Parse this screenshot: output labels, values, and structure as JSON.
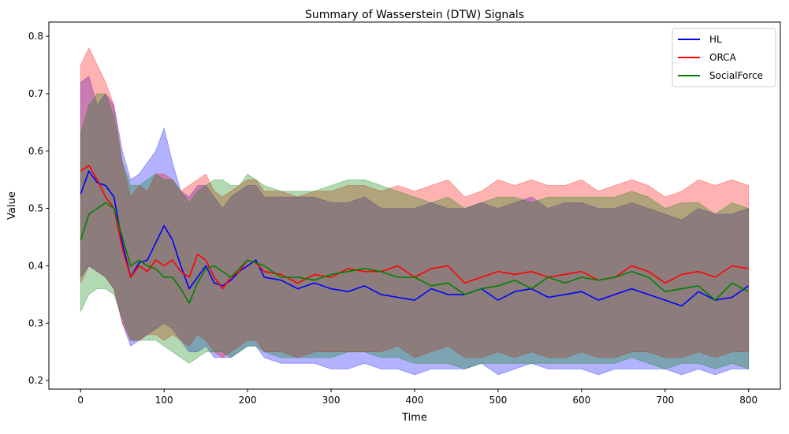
{
  "chart_data": {
    "type": "line",
    "title": "Summary of Wasserstein (DTW) Signals",
    "xlabel": "Time",
    "ylabel": "Value",
    "xlim": [
      -38,
      838
    ],
    "ylim": [
      0.185,
      0.825
    ],
    "xticks": [
      0,
      100,
      200,
      300,
      400,
      500,
      600,
      700,
      800
    ],
    "yticks": [
      0.2,
      0.3,
      0.4,
      0.5,
      0.6,
      0.7,
      0.8
    ],
    "ytick_labels": [
      "0.2",
      "0.3",
      "0.4",
      "0.5",
      "0.6",
      "0.7",
      "0.8"
    ],
    "grid": false,
    "legend_position": "top-right",
    "band": "shaded band around each mean (upper/lower envelope)",
    "series": [
      {
        "name": "HL",
        "color": "#0000ff",
        "x": [
          0,
          10,
          20,
          30,
          40,
          50,
          60,
          70,
          80,
          90,
          100,
          110,
          120,
          130,
          140,
          150,
          160,
          170,
          180,
          190,
          200,
          210,
          220,
          240,
          260,
          280,
          300,
          320,
          340,
          360,
          380,
          400,
          420,
          440,
          460,
          480,
          500,
          520,
          540,
          560,
          580,
          600,
          620,
          640,
          660,
          680,
          700,
          720,
          740,
          760,
          780,
          800
        ],
        "mean": [
          0.525,
          0.565,
          0.545,
          0.54,
          0.52,
          0.44,
          0.38,
          0.405,
          0.41,
          0.44,
          0.47,
          0.445,
          0.4,
          0.36,
          0.38,
          0.4,
          0.37,
          0.365,
          0.375,
          0.39,
          0.4,
          0.41,
          0.38,
          0.375,
          0.36,
          0.37,
          0.36,
          0.355,
          0.365,
          0.35,
          0.345,
          0.34,
          0.36,
          0.35,
          0.35,
          0.36,
          0.34,
          0.355,
          0.36,
          0.345,
          0.35,
          0.355,
          0.34,
          0.35,
          0.36,
          0.35,
          0.34,
          0.33,
          0.355,
          0.34,
          0.345,
          0.365
        ],
        "upper": [
          0.72,
          0.73,
          0.68,
          0.7,
          0.68,
          0.6,
          0.55,
          0.56,
          0.58,
          0.6,
          0.64,
          0.58,
          0.53,
          0.52,
          0.54,
          0.54,
          0.52,
          0.5,
          0.52,
          0.53,
          0.54,
          0.54,
          0.52,
          0.52,
          0.52,
          0.52,
          0.51,
          0.51,
          0.52,
          0.5,
          0.5,
          0.5,
          0.51,
          0.5,
          0.5,
          0.51,
          0.5,
          0.51,
          0.52,
          0.5,
          0.51,
          0.51,
          0.5,
          0.5,
          0.51,
          0.5,
          0.49,
          0.48,
          0.5,
          0.49,
          0.49,
          0.5
        ],
        "lower": [
          0.38,
          0.4,
          0.39,
          0.38,
          0.36,
          0.3,
          0.26,
          0.27,
          0.28,
          0.29,
          0.3,
          0.29,
          0.27,
          0.25,
          0.25,
          0.26,
          0.24,
          0.24,
          0.24,
          0.25,
          0.26,
          0.26,
          0.24,
          0.23,
          0.23,
          0.23,
          0.22,
          0.22,
          0.23,
          0.22,
          0.22,
          0.21,
          0.22,
          0.22,
          0.22,
          0.23,
          0.21,
          0.22,
          0.23,
          0.22,
          0.22,
          0.22,
          0.21,
          0.22,
          0.22,
          0.22,
          0.22,
          0.21,
          0.22,
          0.21,
          0.22,
          0.22
        ]
      },
      {
        "name": "ORCA",
        "color": "#ff0000",
        "x": [
          0,
          10,
          20,
          30,
          40,
          50,
          60,
          70,
          80,
          90,
          100,
          110,
          120,
          130,
          140,
          150,
          160,
          170,
          180,
          190,
          200,
          210,
          220,
          240,
          260,
          280,
          300,
          320,
          340,
          360,
          380,
          400,
          420,
          440,
          460,
          480,
          500,
          520,
          540,
          560,
          580,
          600,
          620,
          640,
          660,
          680,
          700,
          720,
          740,
          760,
          780,
          800
        ],
        "mean": [
          0.565,
          0.575,
          0.55,
          0.52,
          0.5,
          0.43,
          0.38,
          0.4,
          0.39,
          0.41,
          0.4,
          0.41,
          0.39,
          0.38,
          0.42,
          0.41,
          0.38,
          0.36,
          0.38,
          0.39,
          0.41,
          0.405,
          0.39,
          0.385,
          0.37,
          0.385,
          0.38,
          0.395,
          0.39,
          0.39,
          0.4,
          0.38,
          0.395,
          0.4,
          0.37,
          0.38,
          0.39,
          0.385,
          0.39,
          0.38,
          0.385,
          0.39,
          0.375,
          0.38,
          0.4,
          0.39,
          0.37,
          0.385,
          0.39,
          0.38,
          0.4,
          0.395
        ],
        "upper": [
          0.75,
          0.78,
          0.75,
          0.72,
          0.68,
          0.58,
          0.52,
          0.54,
          0.53,
          0.56,
          0.56,
          0.55,
          0.53,
          0.54,
          0.55,
          0.56,
          0.53,
          0.52,
          0.53,
          0.54,
          0.55,
          0.55,
          0.53,
          0.53,
          0.52,
          0.53,
          0.53,
          0.54,
          0.54,
          0.53,
          0.54,
          0.53,
          0.54,
          0.55,
          0.52,
          0.53,
          0.55,
          0.54,
          0.55,
          0.54,
          0.54,
          0.55,
          0.53,
          0.54,
          0.55,
          0.54,
          0.52,
          0.53,
          0.55,
          0.54,
          0.55,
          0.54
        ],
        "lower": [
          0.37,
          0.4,
          0.39,
          0.38,
          0.36,
          0.3,
          0.27,
          0.27,
          0.28,
          0.28,
          0.27,
          0.28,
          0.27,
          0.26,
          0.28,
          0.27,
          0.25,
          0.24,
          0.25,
          0.26,
          0.27,
          0.27,
          0.25,
          0.25,
          0.24,
          0.25,
          0.25,
          0.25,
          0.25,
          0.25,
          0.26,
          0.24,
          0.25,
          0.26,
          0.24,
          0.24,
          0.25,
          0.24,
          0.25,
          0.24,
          0.24,
          0.25,
          0.24,
          0.24,
          0.25,
          0.25,
          0.24,
          0.24,
          0.25,
          0.24,
          0.25,
          0.25
        ]
      },
      {
        "name": "SocialForce",
        "color": "#008000",
        "x": [
          0,
          10,
          20,
          30,
          40,
          50,
          60,
          70,
          80,
          90,
          100,
          110,
          120,
          130,
          140,
          150,
          160,
          170,
          180,
          190,
          200,
          210,
          220,
          240,
          260,
          280,
          300,
          320,
          340,
          360,
          380,
          400,
          420,
          440,
          460,
          480,
          500,
          520,
          540,
          560,
          580,
          600,
          620,
          640,
          660,
          680,
          700,
          720,
          740,
          760,
          780,
          800
        ],
        "mean": [
          0.445,
          0.49,
          0.5,
          0.51,
          0.5,
          0.45,
          0.4,
          0.41,
          0.4,
          0.395,
          0.38,
          0.38,
          0.36,
          0.335,
          0.37,
          0.395,
          0.4,
          0.39,
          0.38,
          0.395,
          0.41,
          0.405,
          0.4,
          0.38,
          0.38,
          0.375,
          0.385,
          0.39,
          0.395,
          0.39,
          0.38,
          0.38,
          0.365,
          0.37,
          0.35,
          0.36,
          0.365,
          0.375,
          0.36,
          0.38,
          0.37,
          0.38,
          0.375,
          0.38,
          0.39,
          0.38,
          0.355,
          0.36,
          0.365,
          0.34,
          0.37,
          0.355
        ],
        "upper": [
          0.63,
          0.68,
          0.7,
          0.7,
          0.66,
          0.58,
          0.54,
          0.54,
          0.55,
          0.56,
          0.55,
          0.55,
          0.53,
          0.51,
          0.53,
          0.54,
          0.55,
          0.55,
          0.54,
          0.54,
          0.56,
          0.55,
          0.54,
          0.53,
          0.53,
          0.53,
          0.54,
          0.55,
          0.55,
          0.54,
          0.53,
          0.52,
          0.51,
          0.52,
          0.5,
          0.51,
          0.52,
          0.52,
          0.51,
          0.52,
          0.52,
          0.52,
          0.52,
          0.52,
          0.53,
          0.52,
          0.5,
          0.51,
          0.51,
          0.49,
          0.51,
          0.5
        ],
        "lower": [
          0.32,
          0.35,
          0.36,
          0.36,
          0.35,
          0.31,
          0.27,
          0.27,
          0.27,
          0.27,
          0.26,
          0.25,
          0.24,
          0.23,
          0.24,
          0.25,
          0.25,
          0.25,
          0.24,
          0.25,
          0.26,
          0.26,
          0.25,
          0.24,
          0.24,
          0.24,
          0.24,
          0.25,
          0.25,
          0.24,
          0.24,
          0.23,
          0.23,
          0.23,
          0.22,
          0.23,
          0.23,
          0.23,
          0.23,
          0.23,
          0.23,
          0.23,
          0.23,
          0.23,
          0.24,
          0.23,
          0.22,
          0.23,
          0.23,
          0.22,
          0.23,
          0.22
        ]
      }
    ]
  }
}
